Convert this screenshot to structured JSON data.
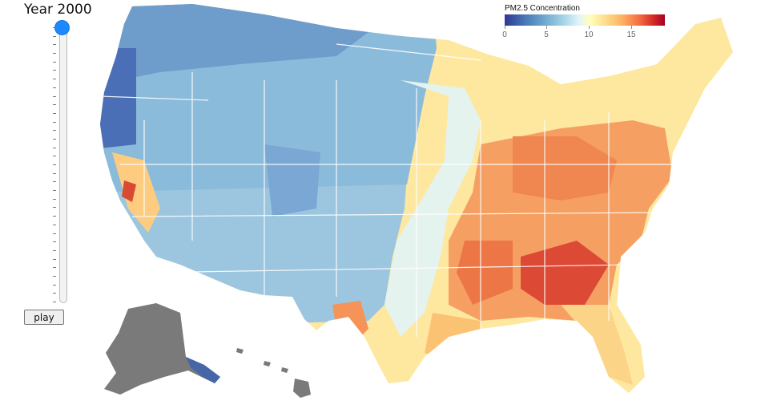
{
  "header": {
    "year_label": "Year 2000"
  },
  "slider": {
    "min_year": 2000,
    "max_year": 2016,
    "value": 2000,
    "tick_count": 33
  },
  "controls": {
    "play_label": "play"
  },
  "legend": {
    "title": "PM2.5 Concentration",
    "ticks": [
      "0",
      "5",
      "10",
      "15"
    ],
    "min": 0,
    "max": 19,
    "colors": [
      "#313695",
      "#4575b4",
      "#74add1",
      "#abd9e9",
      "#e0f3f8",
      "#ffffbf",
      "#fee090",
      "#fdae61",
      "#f46d43",
      "#d73027",
      "#a50026"
    ]
  },
  "map": {
    "region": "United States counties",
    "background_color": "#ffffff",
    "border_color": "#ffffff",
    "inset_color": "#7a7a7a"
  }
}
